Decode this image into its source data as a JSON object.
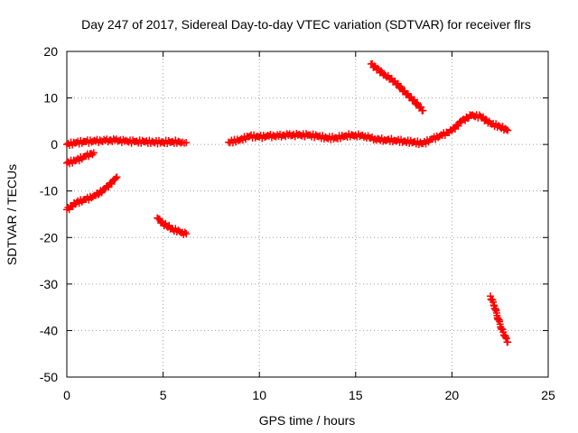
{
  "chart_data": {
    "type": "scatter",
    "title": "Day 247 of 2017, Sidereal Day-to-day VTEC variation (SDTVAR) for receiver flrs",
    "xlabel": "GPS time / hours",
    "ylabel": "SDTVAR / TECUs",
    "xlim": [
      0,
      25
    ],
    "ylim": [
      -50,
      20
    ],
    "xticks": [
      0,
      5,
      10,
      15,
      20,
      25
    ],
    "yticks": [
      -50,
      -40,
      -30,
      -20,
      -10,
      0,
      10,
      20
    ],
    "grid": true,
    "legend": "none",
    "marker": "plus",
    "series": [
      {
        "color": "#ff0000",
        "segments": [
          {
            "x": [
              0.0,
              0.5,
              1.0,
              1.5,
              2.0,
              2.5,
              3.0,
              3.5,
              4.0,
              4.5,
              5.0,
              5.5,
              6.0,
              6.2
            ],
            "y": [
              0.0,
              0.4,
              0.6,
              0.7,
              0.8,
              0.9,
              0.7,
              0.6,
              0.6,
              0.5,
              0.5,
              0.6,
              0.5,
              0.4
            ]
          },
          {
            "x": [
              0.0,
              0.5,
              1.0,
              1.4
            ],
            "y": [
              -4.0,
              -3.4,
              -2.5,
              -1.8
            ]
          },
          {
            "x": [
              0.0,
              0.5,
              1.0,
              1.5,
              2.0,
              2.5,
              2.6
            ],
            "y": [
              -14.0,
              -12.5,
              -11.8,
              -11.0,
              -9.5,
              -7.5,
              -7.0
            ]
          },
          {
            "x": [
              4.7,
              5.0,
              5.5,
              6.0,
              6.2
            ],
            "y": [
              -15.8,
              -17.0,
              -18.2,
              -18.9,
              -19.2
            ]
          },
          {
            "x": [
              8.4,
              9.0,
              9.5,
              10.0,
              10.5,
              11.0,
              11.5,
              12.0,
              12.5,
              13.0,
              13.5,
              14.0,
              14.5,
              15.0,
              15.5,
              16.0,
              16.5,
              17.0,
              17.5,
              18.0,
              18.5,
              19.0,
              19.5,
              20.0,
              20.5,
              21.0,
              21.5,
              22.0,
              22.5,
              22.9
            ],
            "y": [
              0.5,
              1.0,
              1.8,
              1.6,
              1.8,
              1.8,
              2.0,
              2.0,
              2.0,
              1.8,
              1.4,
              1.4,
              1.9,
              2.0,
              1.8,
              1.2,
              1.0,
              0.9,
              0.7,
              0.5,
              0.2,
              1.2,
              2.0,
              3.0,
              5.0,
              6.2,
              6.0,
              4.5,
              3.8,
              3.0
            ]
          },
          {
            "x": [
              15.8,
              16.5,
              17.0,
              17.5,
              18.0,
              18.5
            ],
            "y": [
              17.3,
              15.0,
              13.6,
              11.5,
              9.5,
              7.3
            ]
          },
          {
            "x": [
              22.0,
              22.2,
              22.4,
              22.6,
              22.8,
              22.9
            ],
            "y": [
              -32.6,
              -34.7,
              -37.5,
              -39.8,
              -41.5,
              -42.5
            ]
          }
        ]
      }
    ]
  }
}
